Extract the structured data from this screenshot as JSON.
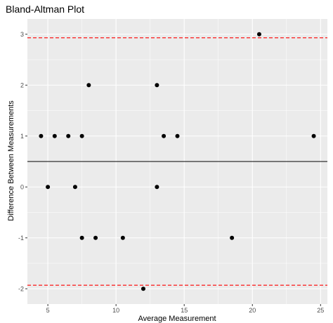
{
  "chart_data": {
    "type": "scatter",
    "title": "Bland-Altman Plot",
    "xlabel": "Average Measurement",
    "ylabel": "Difference Between Measurements",
    "xlim": [
      3.5,
      25.5
    ],
    "ylim": [
      -2.3,
      3.3
    ],
    "x_ticks": [
      5,
      10,
      15,
      20,
      25
    ],
    "y_ticks": [
      -2,
      -1,
      0,
      1,
      2,
      3
    ],
    "grid": true,
    "points": [
      {
        "x": 4.5,
        "y": 1
      },
      {
        "x": 5.0,
        "y": 0
      },
      {
        "x": 5.5,
        "y": 1
      },
      {
        "x": 6.5,
        "y": 1
      },
      {
        "x": 7.0,
        "y": 0
      },
      {
        "x": 7.5,
        "y": 1
      },
      {
        "x": 7.5,
        "y": -1
      },
      {
        "x": 8.0,
        "y": 2
      },
      {
        "x": 8.5,
        "y": -1
      },
      {
        "x": 10.5,
        "y": -1
      },
      {
        "x": 12.0,
        "y": -2
      },
      {
        "x": 13.0,
        "y": 2
      },
      {
        "x": 13.0,
        "y": 0
      },
      {
        "x": 13.5,
        "y": 1
      },
      {
        "x": 14.5,
        "y": 1
      },
      {
        "x": 18.5,
        "y": -1
      },
      {
        "x": 20.5,
        "y": 3
      },
      {
        "x": 24.5,
        "y": 1
      }
    ],
    "mean_difference": 0.5,
    "upper_limit": 2.93,
    "lower_limit": -1.93,
    "colors": {
      "panel": "#ebebeb",
      "grid": "#ffffff",
      "points": "#000000",
      "mean_line": "#000000",
      "limit_lines": "#ff0000"
    }
  }
}
